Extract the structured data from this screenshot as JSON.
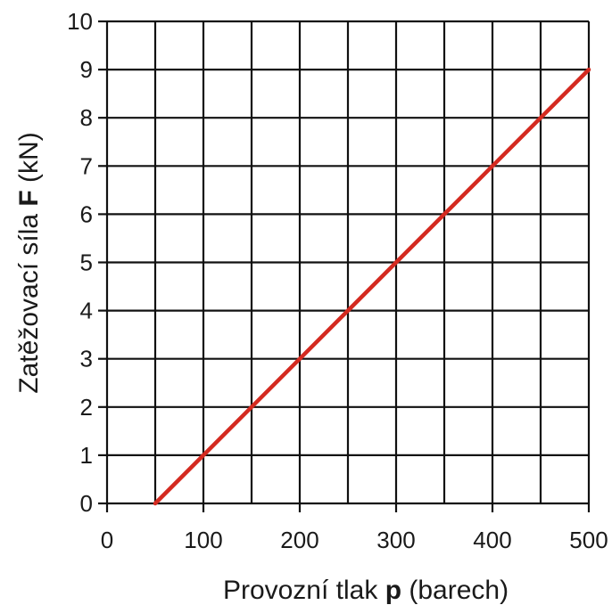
{
  "chart_data": {
    "type": "line",
    "title": "",
    "xlabel": {
      "before": "Provozní tlak ",
      "symbol": "p",
      "after": " (barech)"
    },
    "ylabel": {
      "before": "Zatěžovací síla ",
      "symbol": "F",
      "after": " (kN)"
    },
    "xlim": [
      0,
      500
    ],
    "ylim": [
      0,
      10
    ],
    "x_ticks": [
      0,
      100,
      200,
      300,
      400,
      500
    ],
    "y_ticks": [
      0,
      1,
      2,
      3,
      4,
      5,
      6,
      7,
      8,
      9,
      10
    ],
    "x_minor_grid_step": 50,
    "grid": true,
    "legend": "none",
    "series": [
      {
        "x": [
          50,
          100,
          150,
          200,
          250,
          300,
          350,
          400,
          450,
          500
        ],
        "y": [
          0,
          1,
          2,
          3,
          4,
          5,
          6,
          7,
          8,
          9
        ],
        "color": "#d42a20"
      }
    ]
  }
}
